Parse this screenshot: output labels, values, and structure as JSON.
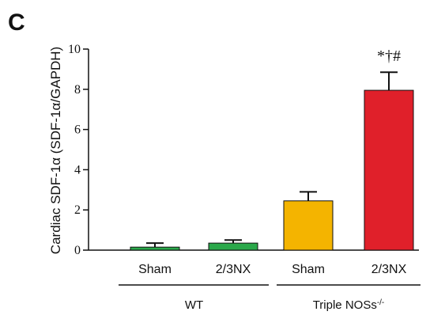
{
  "chart_data": {
    "type": "bar",
    "panel_label": "C",
    "ylabel": "Cardiac SDF-1α (SDF-1α/GAPDH)",
    "ylim": [
      0,
      10
    ],
    "yticks": [
      "0",
      "2",
      "4",
      "6",
      "8",
      "10"
    ],
    "categories": [
      "Sham",
      "2/3NX",
      "Sham",
      "2/3NX"
    ],
    "values": [
      0.15,
      0.35,
      2.45,
      7.95
    ],
    "errors": [
      0.2,
      0.15,
      0.45,
      0.9
    ],
    "colors": [
      "#2aa84a",
      "#2aa84a",
      "#f4b400",
      "#e0202a"
    ],
    "groups": [
      {
        "label": "WT",
        "members": [
          0,
          1
        ]
      },
      {
        "label": "Triple NOSs",
        "superscript": "-/-",
        "members": [
          2,
          3
        ]
      }
    ],
    "annotations": [
      {
        "bar": 3,
        "text": "*†#"
      }
    ]
  }
}
